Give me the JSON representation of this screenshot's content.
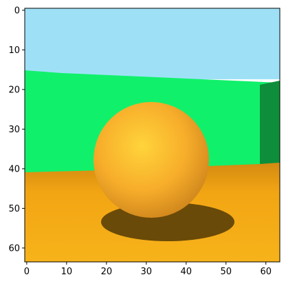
{
  "figure": {
    "image_size": [
      64,
      64
    ],
    "colors": {
      "sky": "#9ee1f7",
      "wall": "#11f06b",
      "wall_shadow_corner": "#0e8e3a",
      "floor": "#f2a513",
      "floor_shadow": "#6a4a08",
      "ball_light": "#ffd43b",
      "ball_mid": "#f7ad2a",
      "ball_dark": "#c9801a"
    },
    "x_ticks": [
      "0",
      "10",
      "20",
      "30",
      "40",
      "50",
      "60"
    ],
    "y_ticks": [
      "0",
      "10",
      "20",
      "30",
      "40",
      "50",
      "60"
    ]
  }
}
